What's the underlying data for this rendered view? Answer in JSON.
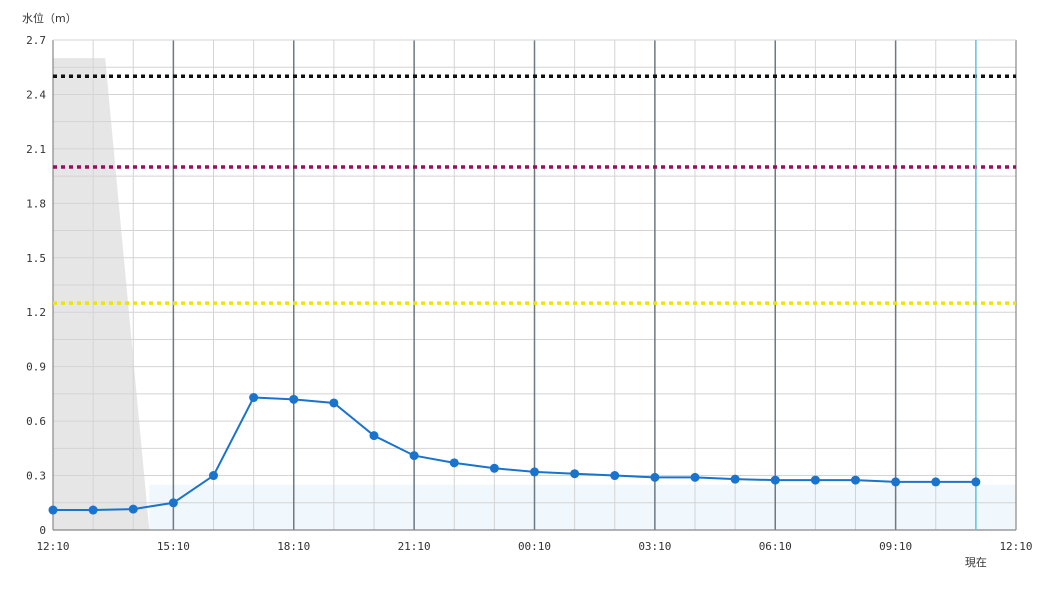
{
  "chart_data": {
    "type": "line",
    "y_axis_title": "水位（m）",
    "ylim": [
      0,
      2.7
    ],
    "y_ticks": [
      0,
      0.3,
      0.6,
      0.9,
      1.2,
      1.5,
      1.8,
      2.1,
      2.4,
      2.7
    ],
    "y_tick_labels": [
      "0",
      "0.3",
      "0.6",
      "0.9",
      "1.2",
      "1.5",
      "1.8",
      "2.1",
      "2.4",
      "2.7"
    ],
    "x_tick_labels": [
      "12:10",
      "15:10",
      "18:10",
      "21:10",
      "00:10",
      "03:10",
      "06:10",
      "09:10",
      "12:10"
    ],
    "x_range_hours": [
      0,
      24
    ],
    "now_label": "現在",
    "now_x_hours": 23,
    "grid": true,
    "series": [
      {
        "x_hours": [
          0,
          1,
          2,
          3,
          4,
          5,
          6,
          7,
          8,
          9,
          10,
          11,
          12,
          13,
          14,
          15,
          16,
          17,
          18,
          19,
          20,
          21,
          22,
          23
        ],
        "values": [
          0.11,
          0.11,
          0.115,
          0.15,
          0.3,
          0.73,
          0.72,
          0.7,
          0.52,
          0.41,
          0.37,
          0.34,
          0.32,
          0.31,
          0.3,
          0.29,
          0.29,
          0.28,
          0.275,
          0.275,
          0.275,
          0.265,
          0.265,
          0.265
        ],
        "color": "#1a73cc"
      }
    ],
    "reference_lines": [
      {
        "value": 2.5,
        "color": "#111111"
      },
      {
        "value": 2.0,
        "color": "#9c0c63"
      },
      {
        "value": 1.25,
        "color": "#f2e200"
      }
    ],
    "shaded_gray_region": {
      "x_hours": [
        0,
        1.3,
        2.4
      ],
      "values": [
        2.6,
        2.6,
        0
      ],
      "color": "#e6e6e6"
    },
    "shaded_blue_region": {
      "x_hours": [
        2.4,
        24
      ],
      "value": 0.25,
      "color": "#f0f7fd"
    },
    "colors": {
      "grid_minor": "#d4d4d4",
      "grid_major": "#6b7a85",
      "axis": "#888888",
      "now_line": "#5cc4e0"
    }
  }
}
